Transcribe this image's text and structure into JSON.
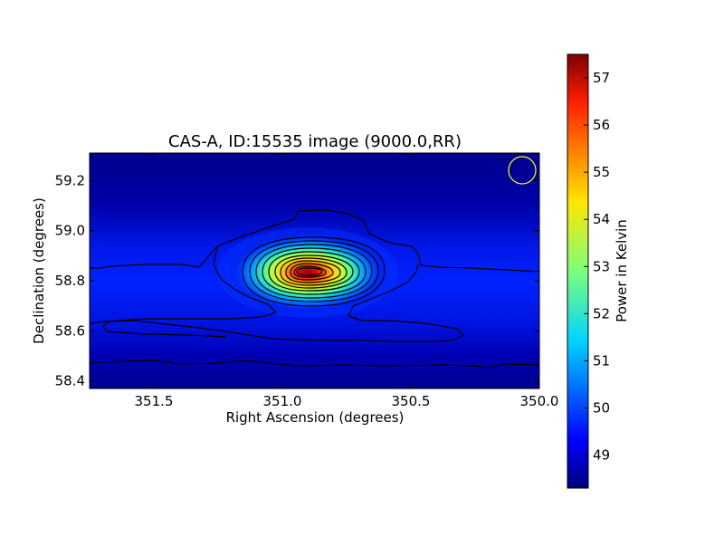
{
  "chart_data": {
    "type": "heatmap",
    "title": "CAS-A, ID:15535 image (9000.0,RR)",
    "xlabel": "Right Ascension (degrees)",
    "ylabel": "Declination (degrees)",
    "xlim": [
      351.75,
      350.0
    ],
    "ylim": [
      58.37,
      59.31
    ],
    "x_inverted": true,
    "xticks": [
      "351.5",
      "351.0",
      "350.5",
      "350.0"
    ],
    "xtick_values": [
      351.5,
      351.0,
      350.5,
      350.0
    ],
    "yticks": [
      "58.4",
      "58.6",
      "58.8",
      "59.0",
      "59.2"
    ],
    "ytick_values": [
      58.4,
      58.6,
      58.8,
      59.0,
      59.2
    ],
    "colorbar": {
      "label": "Power in Kelvin",
      "range": [
        48.3,
        57.5
      ],
      "ticks": [
        "49",
        "50",
        "51",
        "52",
        "53",
        "54",
        "55",
        "56",
        "57"
      ],
      "tick_values": [
        49,
        50,
        51,
        52,
        53,
        54,
        55,
        56,
        57
      ],
      "colormap": "jet"
    },
    "source": {
      "name": "CAS-A",
      "peak_ra": 350.92,
      "peak_dec": 58.83,
      "peak_value": 57.4
    },
    "background_level": 48.6,
    "beam_marker": {
      "ra": 350.06,
      "dec": 59.24,
      "color": "#ffff00"
    }
  }
}
